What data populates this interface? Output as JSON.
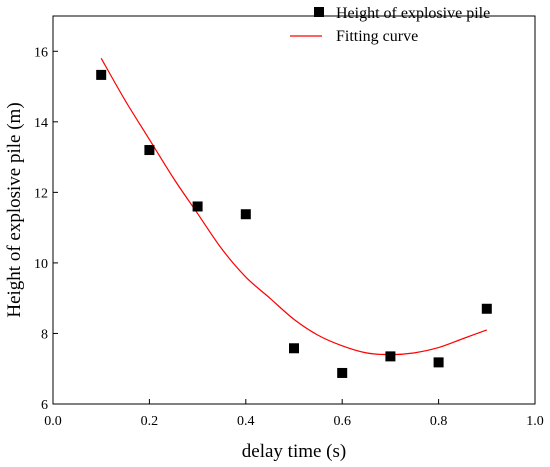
{
  "chart_data": {
    "type": "scatter",
    "xlabel": "delay time (s)",
    "ylabel": "Height of explosive pile (m)",
    "xlim": [
      0.0,
      1.0
    ],
    "ylim": [
      6,
      17
    ],
    "xticks": [
      0.0,
      0.2,
      0.4,
      0.6,
      0.8,
      1.0
    ],
    "xtick_labels": [
      "0.0",
      "0.2",
      "0.4",
      "0.6",
      "0.8",
      "1.0"
    ],
    "yticks": [
      6,
      8,
      10,
      12,
      14,
      16
    ],
    "ytick_labels": [
      "6",
      "8",
      "10",
      "12",
      "14",
      "16"
    ],
    "grid": false,
    "legend_position": "top-right",
    "series": [
      {
        "name": "Height of explosive pile",
        "kind": "scatter",
        "marker": "square",
        "color": "#000000",
        "x": [
          0.1,
          0.2,
          0.3,
          0.4,
          0.5,
          0.6,
          0.7,
          0.8,
          0.9
        ],
        "y": [
          15.33,
          13.2,
          11.6,
          11.38,
          7.58,
          6.88,
          7.35,
          7.18,
          8.7
        ]
      },
      {
        "name": "Fitting curve",
        "kind": "line",
        "color": "#ff0000",
        "x": [
          0.1,
          0.15,
          0.2,
          0.25,
          0.3,
          0.35,
          0.4,
          0.45,
          0.5,
          0.55,
          0.6,
          0.65,
          0.7,
          0.75,
          0.8,
          0.85,
          0.9
        ],
        "y": [
          15.8,
          14.6,
          13.5,
          12.4,
          11.4,
          10.4,
          9.6,
          9.0,
          8.4,
          7.95,
          7.65,
          7.45,
          7.4,
          7.45,
          7.6,
          7.85,
          8.1
        ]
      }
    ]
  }
}
